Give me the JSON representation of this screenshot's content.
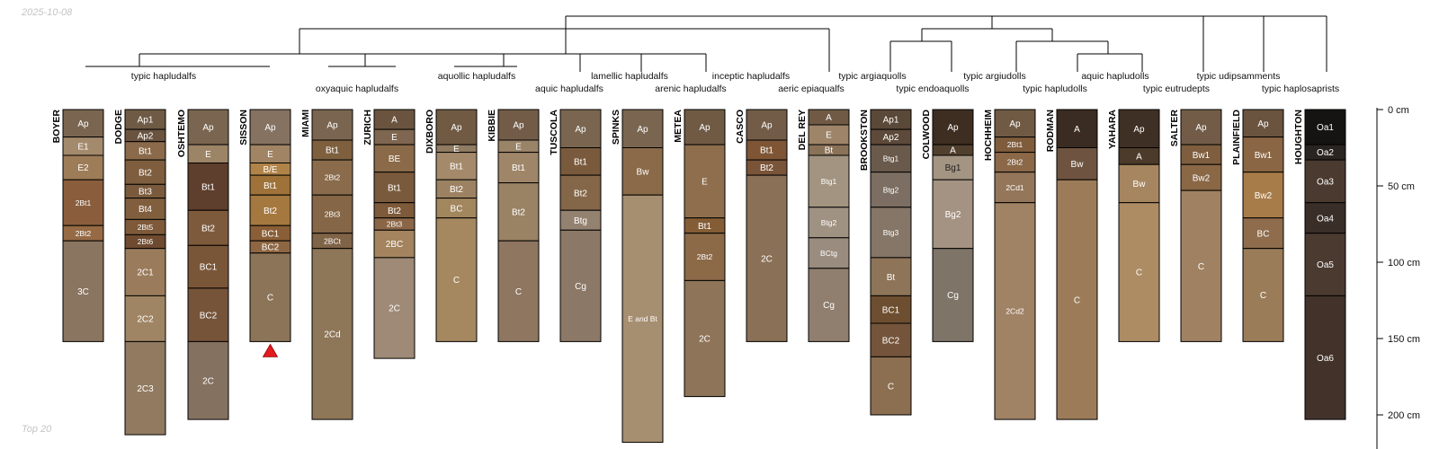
{
  "header": {
    "date": "2025-10-08"
  },
  "footer": {
    "caption": "Top 20"
  },
  "chart_data": {
    "type": "soil-profile-sketch",
    "depth_unit": "cm",
    "depth_axis": {
      "ticks": [
        0,
        50,
        100,
        150,
        200
      ],
      "tick_labels": [
        "0 cm",
        "50 cm",
        "100 cm",
        "150 cm",
        "200 cm"
      ],
      "max": 218
    },
    "groups": [
      {
        "label": "typic hapludalfs",
        "members": [
          "BOYER",
          "DODGE",
          "OSHTEMO",
          "SISSON"
        ]
      },
      {
        "label": "oxyaquic hapludalfs",
        "members": [
          "MIAMI",
          "ZURICH"
        ]
      },
      {
        "label": "aquollic hapludalfs",
        "members": [
          "DIXBORO",
          "KIBBIE"
        ]
      },
      {
        "label": "aquic hapludalfs",
        "members": [
          "TUSCOLA"
        ]
      },
      {
        "label": "lamellic hapludalfs",
        "members": [
          "SPINKS"
        ]
      },
      {
        "label": "arenic hapludalfs",
        "members": [
          "METEA"
        ]
      },
      {
        "label": "inceptic hapludalfs",
        "members": [
          "CASCO"
        ]
      },
      {
        "label": "aeric epiaqualfs",
        "members": [
          "DEL REY"
        ]
      },
      {
        "label": "typic argiaquolls",
        "members": [
          "BROOKSTON"
        ]
      },
      {
        "label": "typic endoaquolls",
        "members": [
          "COLWOOD"
        ]
      },
      {
        "label": "typic argiudolls",
        "members": [
          "HOCHHEIM"
        ]
      },
      {
        "label": "typic hapludolls",
        "members": [
          "RODMAN"
        ]
      },
      {
        "label": "aquic hapludolls",
        "members": [
          "YAHARA"
        ]
      },
      {
        "label": "typic eutrudepts",
        "members": [
          "SALTER"
        ]
      },
      {
        "label": "typic udipsamments",
        "members": [
          "PLAINFIELD"
        ]
      },
      {
        "label": "typic haplosaprists",
        "members": [
          "HOUGHTON"
        ]
      }
    ],
    "profiles": [
      {
        "name": "BOYER",
        "horizons": [
          {
            "name": "Ap",
            "top": 0,
            "bottom": 18,
            "color": "#7a6650"
          },
          {
            "name": "E1",
            "top": 18,
            "bottom": 30,
            "color": "#a38a6c"
          },
          {
            "name": "E2",
            "top": 30,
            "bottom": 46,
            "color": "#9d7c58"
          },
          {
            "name": "2Bt1",
            "top": 46,
            "bottom": 76,
            "color": "#8a5e3c"
          },
          {
            "name": "2Bt2",
            "top": 76,
            "bottom": 86,
            "color": "#956a44"
          },
          {
            "name": "3C",
            "top": 86,
            "bottom": 152,
            "color": "#8a7560"
          }
        ]
      },
      {
        "name": "DODGE",
        "horizons": [
          {
            "name": "Ap1",
            "top": 0,
            "bottom": 13,
            "color": "#6f5a45"
          },
          {
            "name": "Ap2",
            "top": 13,
            "bottom": 21,
            "color": "#6a5440"
          },
          {
            "name": "Bt1",
            "top": 21,
            "bottom": 33,
            "color": "#8a6a4a"
          },
          {
            "name": "Bt2",
            "top": 33,
            "bottom": 49,
            "color": "#7e5e3e"
          },
          {
            "name": "Bt3",
            "top": 49,
            "bottom": 58,
            "color": "#7a5a3c"
          },
          {
            "name": "Bt4",
            "top": 58,
            "bottom": 72,
            "color": "#805e3e"
          },
          {
            "name": "2Bt5",
            "top": 72,
            "bottom": 82,
            "color": "#7e5a3a"
          },
          {
            "name": "2Bt6",
            "top": 82,
            "bottom": 91,
            "color": "#6e4a30"
          },
          {
            "name": "2C1",
            "top": 91,
            "bottom": 122,
            "color": "#9a7c5c"
          },
          {
            "name": "2C2",
            "top": 122,
            "bottom": 152,
            "color": "#a08564"
          },
          {
            "name": "2C3",
            "top": 152,
            "bottom": 213,
            "color": "#917a60"
          }
        ]
      },
      {
        "name": "OSHTEMO",
        "horizons": [
          {
            "name": "Ap",
            "top": 0,
            "bottom": 23,
            "color": "#7a6650"
          },
          {
            "name": "E",
            "top": 23,
            "bottom": 35,
            "color": "#9c8466"
          },
          {
            "name": "Bt1",
            "top": 35,
            "bottom": 66,
            "color": "#5e3e2c"
          },
          {
            "name": "Bt2",
            "top": 66,
            "bottom": 89,
            "color": "#7e5a3c"
          },
          {
            "name": "BC1",
            "top": 89,
            "bottom": 117,
            "color": "#7a5638"
          },
          {
            "name": "BC2",
            "top": 117,
            "bottom": 152,
            "color": "#76543a"
          },
          {
            "name": "2C",
            "top": 152,
            "bottom": 203,
            "color": "#857160"
          }
        ]
      },
      {
        "name": "SISSON",
        "horizons": [
          {
            "name": "Ap",
            "top": 0,
            "bottom": 23,
            "color": "#857260"
          },
          {
            "name": "E",
            "top": 23,
            "bottom": 35,
            "color": "#a08464"
          },
          {
            "name": "B/E",
            "top": 35,
            "bottom": 43,
            "color": "#b08448"
          },
          {
            "name": "Bt1",
            "top": 43,
            "bottom": 56,
            "color": "#9e7238"
          },
          {
            "name": "Bt2",
            "top": 56,
            "bottom": 76,
            "color": "#a4783e"
          },
          {
            "name": "BC1",
            "top": 76,
            "bottom": 86,
            "color": "#8a5e36"
          },
          {
            "name": "BC2",
            "top": 86,
            "bottom": 94,
            "color": "#8e6642"
          },
          {
            "name": "C",
            "top": 94,
            "bottom": 152,
            "color": "#8c7458"
          }
        ],
        "marker": "bottom-triangle"
      },
      {
        "name": "MIAMI",
        "horizons": [
          {
            "name": "Ap",
            "top": 0,
            "bottom": 20,
            "color": "#7a6650"
          },
          {
            "name": "Bt1",
            "top": 20,
            "bottom": 33,
            "color": "#7e603f"
          },
          {
            "name": "2Bt2",
            "top": 33,
            "bottom": 56,
            "color": "#8a6c4c"
          },
          {
            "name": "2Bt3",
            "top": 56,
            "bottom": 81,
            "color": "#856646"
          },
          {
            "name": "2BCt",
            "top": 81,
            "bottom": 91,
            "color": "#806448"
          },
          {
            "name": "2Cd",
            "top": 91,
            "bottom": 203,
            "color": "#8e7658"
          }
        ]
      },
      {
        "name": "ZURICH",
        "horizons": [
          {
            "name": "A",
            "top": 0,
            "bottom": 13,
            "color": "#6a5440"
          },
          {
            "name": "E",
            "top": 13,
            "bottom": 23,
            "color": "#7e6650"
          },
          {
            "name": "BE",
            "top": 23,
            "bottom": 41,
            "color": "#8a6a48"
          },
          {
            "name": "Bt1",
            "top": 41,
            "bottom": 61,
            "color": "#7a5a3c"
          },
          {
            "name": "Bt2",
            "top": 61,
            "bottom": 71,
            "color": "#7c5a3a"
          },
          {
            "name": "2Bt3",
            "top": 71,
            "bottom": 79,
            "color": "#8a6646"
          },
          {
            "name": "2BC",
            "top": 79,
            "bottom": 97,
            "color": "#a3845e"
          },
          {
            "name": "2C",
            "top": 97,
            "bottom": 163,
            "color": "#9e8a76"
          }
        ]
      },
      {
        "name": "DIXBORO",
        "horizons": [
          {
            "name": "Ap",
            "top": 0,
            "bottom": 23,
            "color": "#705a44"
          },
          {
            "name": "E",
            "top": 23,
            "bottom": 28,
            "color": "#907c62"
          },
          {
            "name": "Bt1",
            "top": 28,
            "bottom": 46,
            "color": "#a48a6a"
          },
          {
            "name": "Bt2",
            "top": 46,
            "bottom": 58,
            "color": "#9c8262"
          },
          {
            "name": "BC",
            "top": 58,
            "bottom": 71,
            "color": "#a2865e"
          },
          {
            "name": "C",
            "top": 71,
            "bottom": 152,
            "color": "#a58760"
          }
        ]
      },
      {
        "name": "KIBBIE",
        "horizons": [
          {
            "name": "Ap",
            "top": 0,
            "bottom": 20,
            "color": "#725c48"
          },
          {
            "name": "E",
            "top": 20,
            "bottom": 28,
            "color": "#9a8468"
          },
          {
            "name": "Bt1",
            "top": 28,
            "bottom": 48,
            "color": "#a08668"
          },
          {
            "name": "Bt2",
            "top": 48,
            "bottom": 86,
            "color": "#9a8264"
          },
          {
            "name": "C",
            "top": 86,
            "bottom": 152,
            "color": "#8e7660"
          }
        ]
      },
      {
        "name": "TUSCOLA",
        "horizons": [
          {
            "name": "Ap",
            "top": 0,
            "bottom": 25,
            "color": "#7a6650"
          },
          {
            "name": "Bt1",
            "top": 25,
            "bottom": 43,
            "color": "#7a5a3c"
          },
          {
            "name": "Bt2",
            "top": 43,
            "bottom": 66,
            "color": "#846648"
          },
          {
            "name": "Btg",
            "top": 66,
            "bottom": 79,
            "color": "#948270"
          },
          {
            "name": "Cg",
            "top": 79,
            "bottom": 152,
            "color": "#8c7866"
          }
        ]
      },
      {
        "name": "SPINKS",
        "horizons": [
          {
            "name": "Ap",
            "top": 0,
            "bottom": 25,
            "color": "#7a6650"
          },
          {
            "name": "Bw",
            "top": 25,
            "bottom": 56,
            "color": "#8a6a48"
          },
          {
            "name": "E and Bt",
            "top": 56,
            "bottom": 218,
            "color": "#a68e70"
          }
        ]
      },
      {
        "name": "METEA",
        "horizons": [
          {
            "name": "Ap",
            "top": 0,
            "bottom": 23,
            "color": "#705a44"
          },
          {
            "name": "E",
            "top": 23,
            "bottom": 71,
            "color": "#8e6e4c"
          },
          {
            "name": "Bt1",
            "top": 71,
            "bottom": 81,
            "color": "#845c36"
          },
          {
            "name": "2Bt2",
            "top": 81,
            "bottom": 112,
            "color": "#8c6a48"
          },
          {
            "name": "2C",
            "top": 112,
            "bottom": 188,
            "color": "#8e7458"
          }
        ]
      },
      {
        "name": "CASCO",
        "horizons": [
          {
            "name": "Ap",
            "top": 0,
            "bottom": 20,
            "color": "#725c48"
          },
          {
            "name": "Bt1",
            "top": 20,
            "bottom": 33,
            "color": "#7e5636"
          },
          {
            "name": "Bt2",
            "top": 33,
            "bottom": 43,
            "color": "#7a5438"
          },
          {
            "name": "2C",
            "top": 43,
            "bottom": 152,
            "color": "#8a7056"
          }
        ]
      },
      {
        "name": "DEL REY",
        "horizons": [
          {
            "name": "A",
            "top": 0,
            "bottom": 10,
            "color": "#705a46"
          },
          {
            "name": "E",
            "top": 10,
            "bottom": 23,
            "color": "#9e8468"
          },
          {
            "name": "Bt",
            "top": 23,
            "bottom": 30,
            "color": "#8a7258"
          },
          {
            "name": "Btg1",
            "top": 30,
            "bottom": 64,
            "color": "#a29480"
          },
          {
            "name": "Btg2",
            "top": 64,
            "bottom": 84,
            "color": "#a09282"
          },
          {
            "name": "BCtg",
            "top": 84,
            "bottom": 104,
            "color": "#9a8c7e"
          },
          {
            "name": "Cg",
            "top": 104,
            "bottom": 152,
            "color": "#907e6e"
          }
        ]
      },
      {
        "name": "BROOKSTON",
        "horizons": [
          {
            "name": "Ap1",
            "top": 0,
            "bottom": 13,
            "color": "#5a4838"
          },
          {
            "name": "Ap2",
            "top": 13,
            "bottom": 23,
            "color": "#5e4a3a"
          },
          {
            "name": "Btg1",
            "top": 23,
            "bottom": 41,
            "color": "#6a5a4c"
          },
          {
            "name": "Btg2",
            "top": 41,
            "bottom": 64,
            "color": "#7c6e62"
          },
          {
            "name": "Btg3",
            "top": 64,
            "bottom": 97,
            "color": "#857668"
          },
          {
            "name": "Bt",
            "top": 97,
            "bottom": 122,
            "color": "#8e7458"
          },
          {
            "name": "BC1",
            "top": 122,
            "bottom": 140,
            "color": "#6e4e30"
          },
          {
            "name": "BC2",
            "top": 140,
            "bottom": 162,
            "color": "#74543a"
          },
          {
            "name": "C",
            "top": 162,
            "bottom": 200,
            "color": "#8c6e50"
          }
        ]
      },
      {
        "name": "COLWOOD",
        "horizons": [
          {
            "name": "Ap",
            "top": 0,
            "bottom": 23,
            "color": "#3e2e22"
          },
          {
            "name": "A",
            "top": 23,
            "bottom": 30,
            "color": "#52402e"
          },
          {
            "name": "Bg1",
            "top": 30,
            "bottom": 46,
            "color": "#a49482"
          },
          {
            "name": "Bg2",
            "top": 46,
            "bottom": 91,
            "color": "#a49282"
          },
          {
            "name": "Cg",
            "top": 91,
            "bottom": 152,
            "color": "#7e7468"
          }
        ]
      },
      {
        "name": "HOCHHEIM",
        "horizons": [
          {
            "name": "Ap",
            "top": 0,
            "bottom": 18,
            "color": "#705a44"
          },
          {
            "name": "2Bt1",
            "top": 18,
            "bottom": 28,
            "color": "#7e5c3c"
          },
          {
            "name": "2Bt2",
            "top": 28,
            "bottom": 41,
            "color": "#8a6848"
          },
          {
            "name": "2Cd1",
            "top": 41,
            "bottom": 61,
            "color": "#94765a"
          },
          {
            "name": "2Cd2",
            "top": 61,
            "bottom": 203,
            "color": "#a08264"
          }
        ]
      },
      {
        "name": "RODMAN",
        "horizons": [
          {
            "name": "A",
            "top": 0,
            "bottom": 25,
            "color": "#3a2c22"
          },
          {
            "name": "Bw",
            "top": 25,
            "bottom": 46,
            "color": "#6e5440"
          },
          {
            "name": "C",
            "top": 46,
            "bottom": 203,
            "color": "#9c7c58"
          }
        ]
      },
      {
        "name": "YAHARA",
        "horizons": [
          {
            "name": "Ap",
            "top": 0,
            "bottom": 25,
            "color": "#3e3024"
          },
          {
            "name": "A",
            "top": 25,
            "bottom": 36,
            "color": "#4c3a2a"
          },
          {
            "name": "Bw",
            "top": 36,
            "bottom": 61,
            "color": "#a68660"
          },
          {
            "name": "C",
            "top": 61,
            "bottom": 152,
            "color": "#ad8c64"
          }
        ]
      },
      {
        "name": "SALTER",
        "horizons": [
          {
            "name": "Ap",
            "top": 0,
            "bottom": 23,
            "color": "#725c48"
          },
          {
            "name": "Bw1",
            "top": 23,
            "bottom": 36,
            "color": "#7e5e3e"
          },
          {
            "name": "Bw2",
            "top": 36,
            "bottom": 53,
            "color": "#8a6846"
          },
          {
            "name": "C",
            "top": 53,
            "bottom": 152,
            "color": "#a08262"
          }
        ]
      },
      {
        "name": "PLAINFIELD",
        "horizons": [
          {
            "name": "Ap",
            "top": 0,
            "bottom": 18,
            "color": "#6a5440"
          },
          {
            "name": "Bw1",
            "top": 18,
            "bottom": 41,
            "color": "#8a6644"
          },
          {
            "name": "Bw2",
            "top": 41,
            "bottom": 71,
            "color": "#a87c48"
          },
          {
            "name": "BC",
            "top": 71,
            "bottom": 91,
            "color": "#8e6c4c"
          },
          {
            "name": "C",
            "top": 91,
            "bottom": 152,
            "color": "#9a7c58"
          }
        ]
      },
      {
        "name": "HOUGHTON",
        "horizons": [
          {
            "name": "Oa1",
            "top": 0,
            "bottom": 23,
            "color": "#161412"
          },
          {
            "name": "Oa2",
            "top": 23,
            "bottom": 33,
            "color": "#2a2420"
          },
          {
            "name": "Oa3",
            "top": 33,
            "bottom": 61,
            "color": "#4a3a30"
          },
          {
            "name": "Oa4",
            "top": 61,
            "bottom": 81,
            "color": "#3a2e28"
          },
          {
            "name": "Oa5",
            "top": 81,
            "bottom": 122,
            "color": "#4a3a30"
          },
          {
            "name": "Oa6",
            "top": 122,
            "bottom": 203,
            "color": "#42322a"
          }
        ]
      }
    ]
  }
}
